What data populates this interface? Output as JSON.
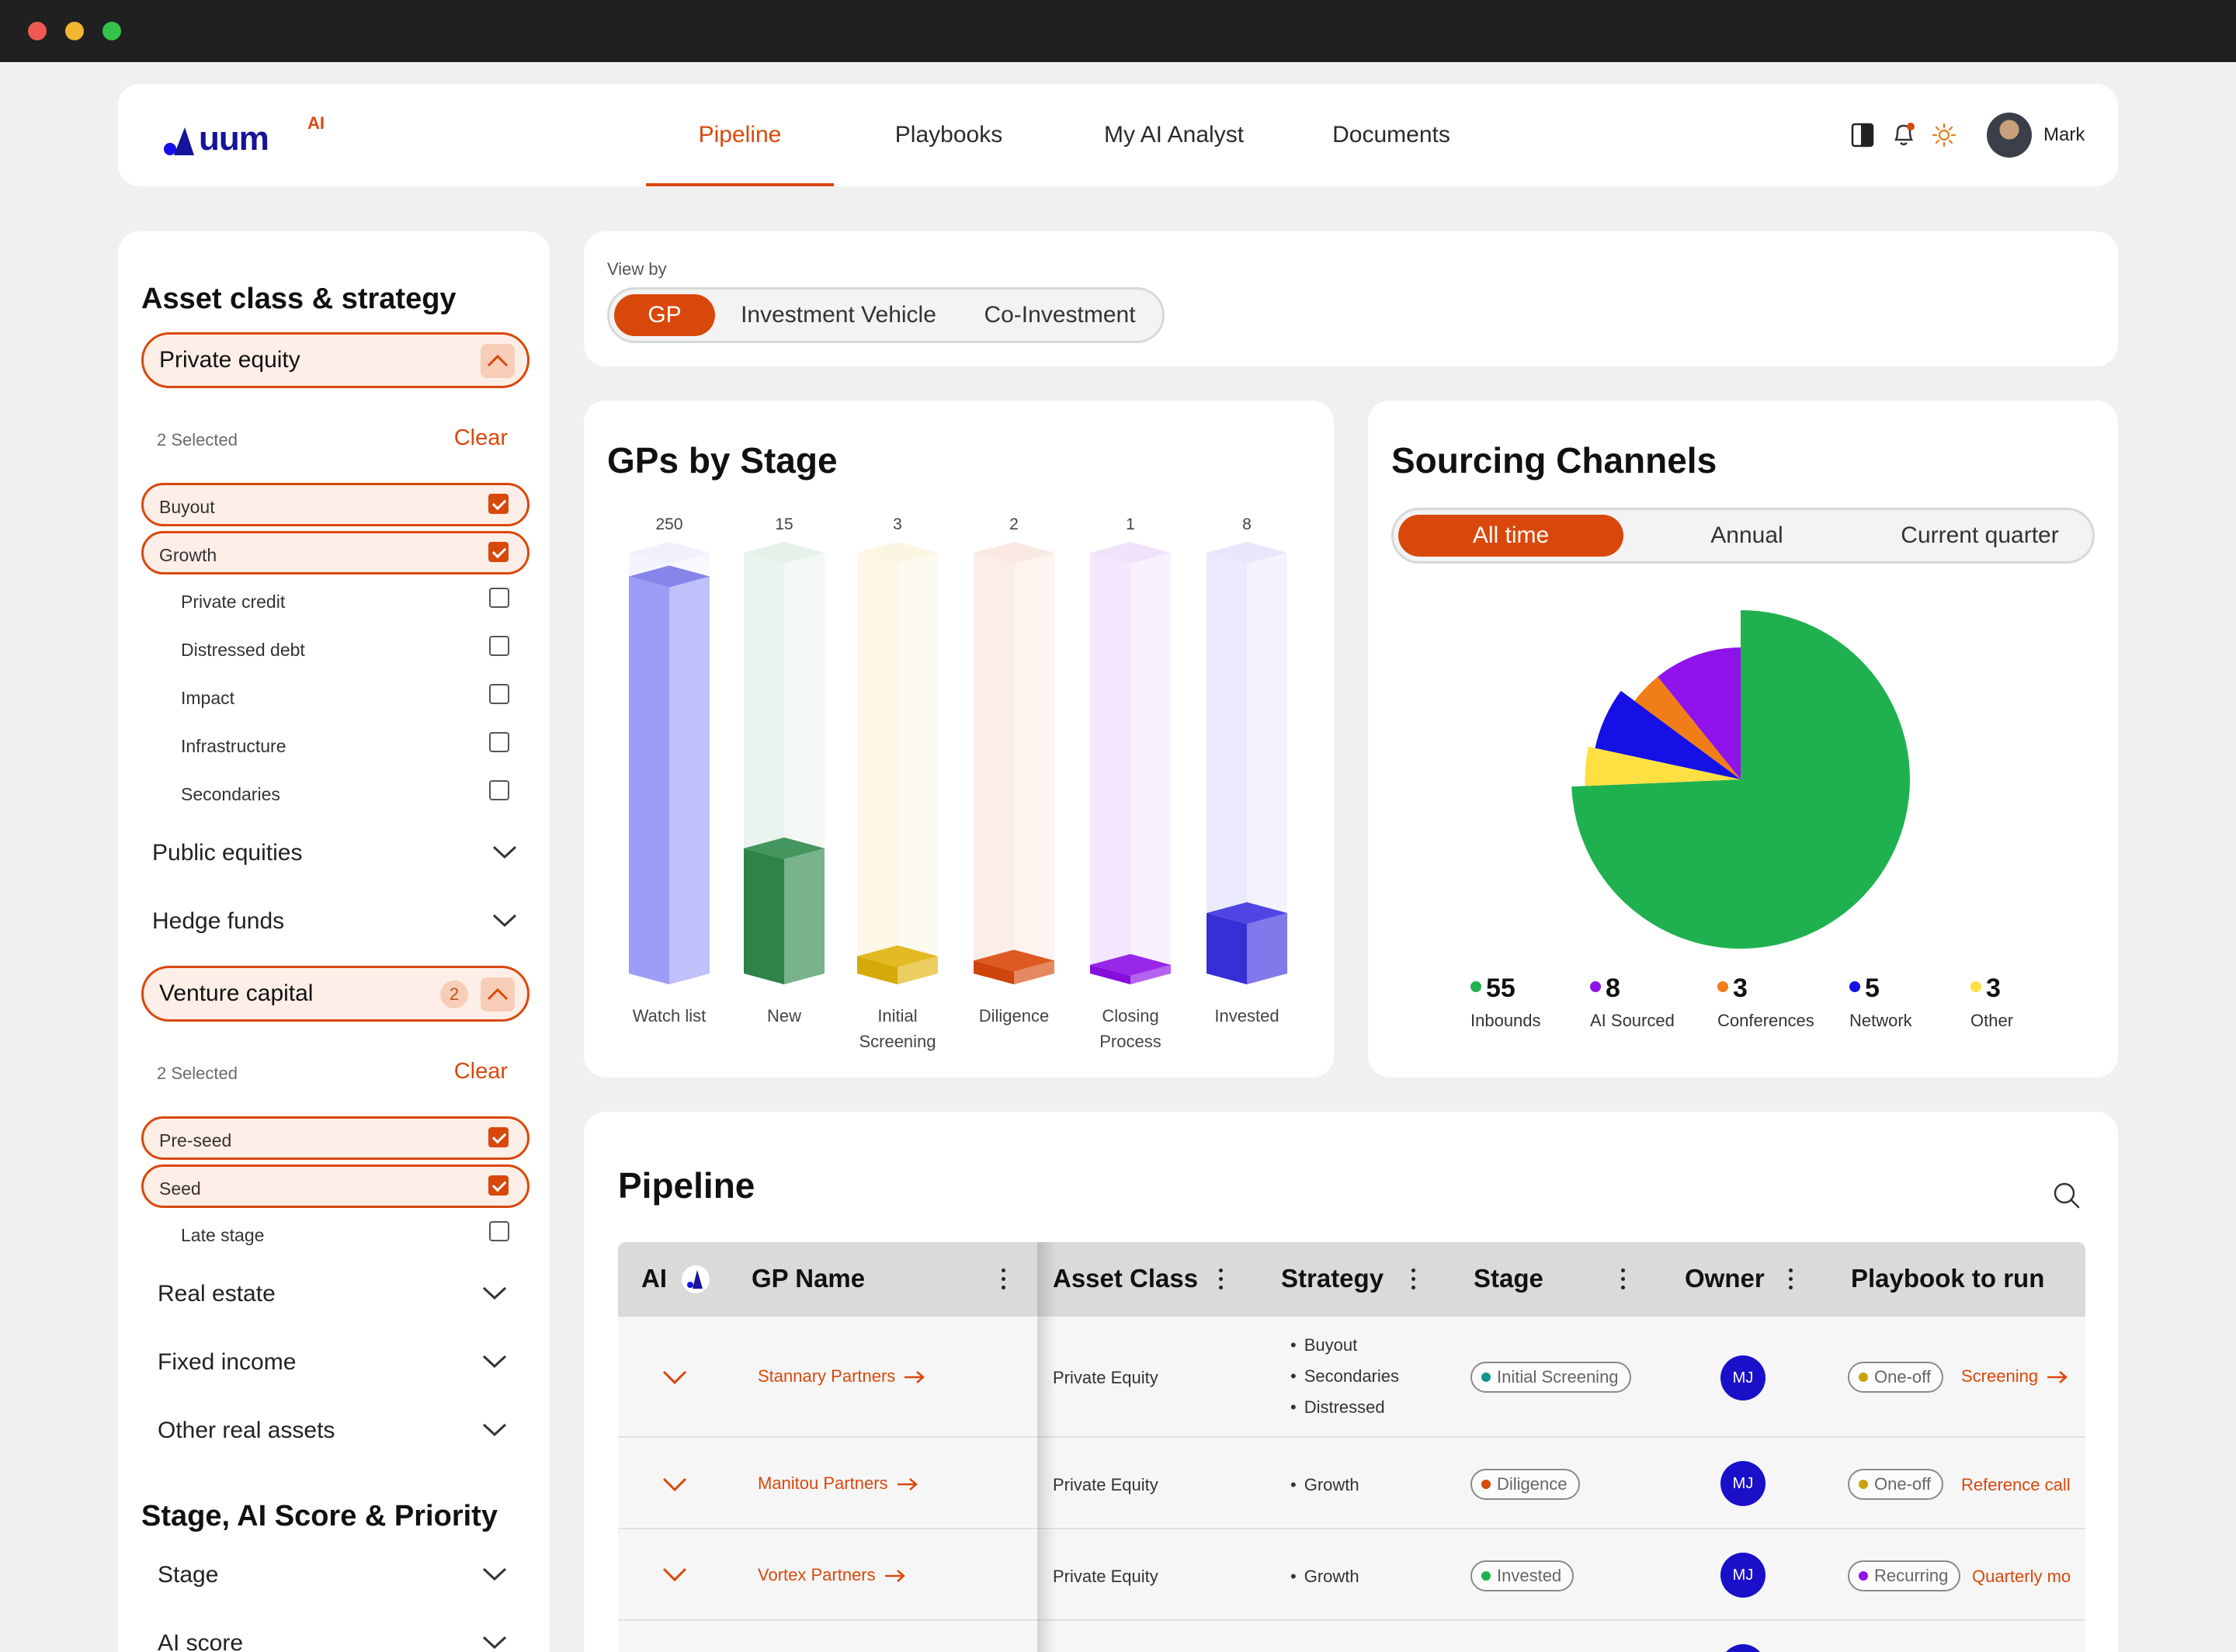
{
  "header": {
    "logo_text": "uum",
    "logo_sup": "AI",
    "nav": [
      {
        "label": "Pipeline",
        "active": true
      },
      {
        "label": "Playbooks",
        "active": false
      },
      {
        "label": "My AI Analyst",
        "active": false
      },
      {
        "label": "Documents",
        "active": false
      }
    ],
    "icons": [
      "panel-icon",
      "bell-icon",
      "sun-icon"
    ],
    "user_name": "Mark"
  },
  "sidebar": {
    "section1_title": "Asset class & strategy",
    "private_equity": {
      "label": "Private equity",
      "selected_text": "2 Selected",
      "clear": "Clear",
      "options": [
        {
          "label": "Buyout",
          "checked": true
        },
        {
          "label": "Growth",
          "checked": true
        },
        {
          "label": "Private credit",
          "checked": false
        },
        {
          "label": "Distressed debt",
          "checked": false
        },
        {
          "label": "Impact",
          "checked": false
        },
        {
          "label": "Infrastructure",
          "checked": false
        },
        {
          "label": "Secondaries",
          "checked": false
        }
      ]
    },
    "public_equities": "Public equities",
    "hedge_funds": "Hedge funds",
    "venture_capital": {
      "label": "Venture capital",
      "badge": "2",
      "selected_text": "2 Selected",
      "clear": "Clear",
      "options": [
        {
          "label": "Pre-seed",
          "checked": true
        },
        {
          "label": "Seed",
          "checked": true
        },
        {
          "label": "Late stage",
          "checked": false
        }
      ]
    },
    "real_estate": "Real estate",
    "fixed_income": "Fixed income",
    "other_real_assets": "Other real assets",
    "section2_title": "Stage, AI Score & Priority",
    "stage": "Stage",
    "ai_score": "AI score"
  },
  "view_by": {
    "label": "View by",
    "options": [
      "GP",
      "Investment Vehicle",
      "Co-Investment"
    ],
    "active": "GP"
  },
  "stage_chart": {
    "title": "GPs by Stage"
  },
  "sourcing": {
    "title": "Sourcing Channels",
    "periods": [
      "All time",
      "Annual",
      "Current quarter"
    ],
    "active_period": "All time"
  },
  "chart_data": [
    {
      "type": "bar",
      "title": "GPs by Stage",
      "categories": [
        "Watch list",
        "New",
        "Initial Screening",
        "Diligence",
        "Closing Process",
        "Invested"
      ],
      "values": [
        250,
        15,
        3,
        2,
        1,
        8
      ],
      "fill_fraction": [
        0.92,
        0.29,
        0.04,
        0.03,
        0.02,
        0.14
      ],
      "colors": [
        "#8c8cf6",
        "#2f8a4c",
        "#e0b20b",
        "#d9480b",
        "#8d0fe6",
        "#3b30e0"
      ]
    },
    {
      "type": "pie",
      "title": "Sourcing Channels",
      "categories": [
        "Inbounds",
        "AI Sourced",
        "Conferences",
        "Network",
        "Other"
      ],
      "values": [
        55,
        8,
        3,
        5,
        3
      ],
      "colors": [
        "#1fb14f",
        "#8f13ea",
        "#f07d17",
        "#1410e6",
        "#ffe043"
      ]
    }
  ],
  "pipeline": {
    "title": "Pipeline",
    "columns": [
      "AI",
      "GP Name",
      "Asset Class",
      "Strategy",
      "Stage",
      "Owner",
      "Playbook to run"
    ],
    "rows": [
      {
        "gp": "Stannary Partners",
        "asset_class": "Private Equity",
        "strategy": [
          "Buyout",
          "Secondaries",
          "Distressed"
        ],
        "stage": "Initial Screening",
        "stage_color": "#12958f",
        "owner": "MJ",
        "frequency": "One-off",
        "freq_color": "#c9a20b",
        "playbook": "Screening"
      },
      {
        "gp": "Manitou Partners",
        "asset_class": "Private Equity",
        "strategy": [
          "Growth"
        ],
        "stage": "Diligence",
        "stage_color": "#d9480b",
        "owner": "MJ",
        "frequency": "One-off",
        "freq_color": "#c9a20b",
        "playbook": "Reference call"
      },
      {
        "gp": "Vortex Partners",
        "asset_class": "Private Equity",
        "strategy": [
          "Growth"
        ],
        "stage": "Invested",
        "stage_color": "#1fb14f",
        "owner": "MJ",
        "frequency": "Recurring",
        "freq_color": "#8f13ea",
        "playbook": "Quarterly mo"
      }
    ]
  }
}
